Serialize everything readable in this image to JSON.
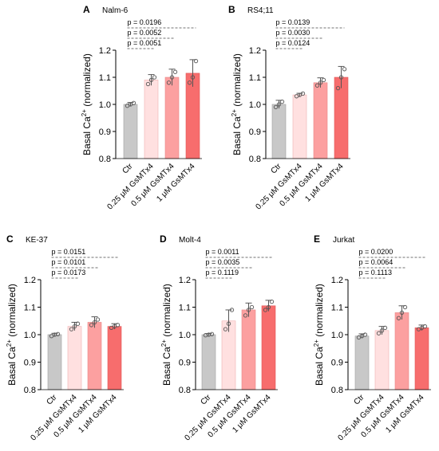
{
  "chart_data": [
    {
      "type": "bar",
      "panel": "A",
      "title": "Nalm-6",
      "ylabel": "Basal Ca2+ (normalized)",
      "ylim": [
        0.8,
        1.2
      ],
      "yticks": [
        "0.8",
        "0.9",
        "1.0",
        "1.1",
        "1.2"
      ],
      "categories": [
        "Ctr",
        "0.25 μM GsMTx4",
        "0.5 μM GsMTx4",
        "1 μM GsMTx4"
      ],
      "values": [
        1.0,
        1.09,
        1.1,
        1.115
      ],
      "errors": [
        0.007,
        0.02,
        0.03,
        0.05
      ],
      "points": [
        [
          0.995,
          1.0,
          1.005
        ],
        [
          1.075,
          1.09,
          1.1
        ],
        [
          1.08,
          1.1,
          1.12
        ],
        [
          1.08,
          1.1,
          1.16
        ]
      ],
      "pvalues": [
        "p = 0.0196",
        "p = 0.0052",
        "p = 0.0051"
      ]
    },
    {
      "type": "bar",
      "panel": "B",
      "title": "RS4;11",
      "ylabel": "Basal Ca2+ (normalized)",
      "ylim": [
        0.8,
        1.2
      ],
      "yticks": [
        "0.8",
        "0.9",
        "1.0",
        "1.1",
        "1.2"
      ],
      "categories": [
        "Ctr",
        "0.25 μM GsMTx4",
        "0.5 μM GsMTx4",
        "1 μM GsMTx4"
      ],
      "values": [
        1.0,
        1.035,
        1.08,
        1.1
      ],
      "errors": [
        0.015,
        0.006,
        0.018,
        0.04
      ],
      "points": [
        [
          0.99,
          1.0,
          1.01
        ],
        [
          1.03,
          1.035,
          1.04
        ],
        [
          1.07,
          1.08,
          1.09
        ],
        [
          1.06,
          1.1,
          1.13
        ]
      ],
      "pvalues": [
        "p = 0.0139",
        "p = 0.0030",
        "p = 0.0124"
      ]
    },
    {
      "type": "bar",
      "panel": "C",
      "title": "KE-37",
      "ylabel": "Basal Ca2+ (normalized)",
      "ylim": [
        0.8,
        1.2
      ],
      "yticks": [
        "0.8",
        "0.9",
        "1.0",
        "1.1",
        "1.2"
      ],
      "categories": [
        "Ctr",
        "0.25 μM GsMTx4",
        "0.5 μM GsMTx4",
        "1 μM GsMTx4"
      ],
      "values": [
        1.0,
        1.03,
        1.045,
        1.03
      ],
      "errors": [
        0.005,
        0.015,
        0.02,
        0.01
      ],
      "points": [
        [
          0.995,
          1.0,
          1.002
        ],
        [
          1.02,
          1.03,
          1.04
        ],
        [
          1.035,
          1.045,
          1.055
        ],
        [
          1.025,
          1.03,
          1.035
        ]
      ],
      "pvalues": [
        "p = 0.0151",
        "p = 0.0101",
        "p = 0.0173"
      ]
    },
    {
      "type": "bar",
      "panel": "D",
      "title": "Molt-4",
      "ylabel": "Basal Ca2+ (normalized)",
      "ylim": [
        0.8,
        1.2
      ],
      "yticks": [
        "0.8",
        "0.9",
        "1.0",
        "1.1",
        "1.2"
      ],
      "categories": [
        "Ctr",
        "0.25 μM GsMTx4",
        "0.5 μM GsMTx4",
        "1 μM GsMTx4"
      ],
      "values": [
        1.0,
        1.05,
        1.09,
        1.105
      ],
      "errors": [
        0.004,
        0.04,
        0.025,
        0.02
      ],
      "points": [
        [
          0.998,
          1.0,
          1.002
        ],
        [
          1.02,
          1.04,
          1.09
        ],
        [
          1.07,
          1.09,
          1.1
        ],
        [
          1.09,
          1.1,
          1.12
        ]
      ],
      "pvalues": [
        "p = 0.0011",
        "p = 0.0035",
        "p = 0.1119"
      ]
    },
    {
      "type": "bar",
      "panel": "E",
      "title": "Jurkat",
      "ylabel": "Basal Ca2+ (normalized)",
      "ylim": [
        0.8,
        1.2
      ],
      "yticks": [
        "0.8",
        "0.9",
        "1.0",
        "1.1",
        "1.2"
      ],
      "categories": [
        "Ctr",
        "0.25 μM GsMTx4",
        "0.5 μM GsMTx4",
        "1 μM GsMTx4"
      ],
      "values": [
        0.995,
        1.015,
        1.08,
        1.025
      ],
      "errors": [
        0.008,
        0.015,
        0.025,
        0.01
      ],
      "points": [
        [
          0.99,
          0.995,
          1.0
        ],
        [
          1.005,
          1.015,
          1.025
        ],
        [
          1.06,
          1.08,
          1.1
        ],
        [
          1.02,
          1.025,
          1.03
        ]
      ],
      "pvalues": [
        "p = 0.0200",
        "p = 0.0064",
        "p = 0.1113"
      ]
    }
  ],
  "bar_colors": [
    "#c8c8c8",
    "#ffe0e0",
    "#fca0a0",
    "#f76d6d"
  ],
  "bar_edge_colors": [
    "#a0a0a0",
    "#f0b0b0",
    "#e98585",
    "#e05858"
  ]
}
